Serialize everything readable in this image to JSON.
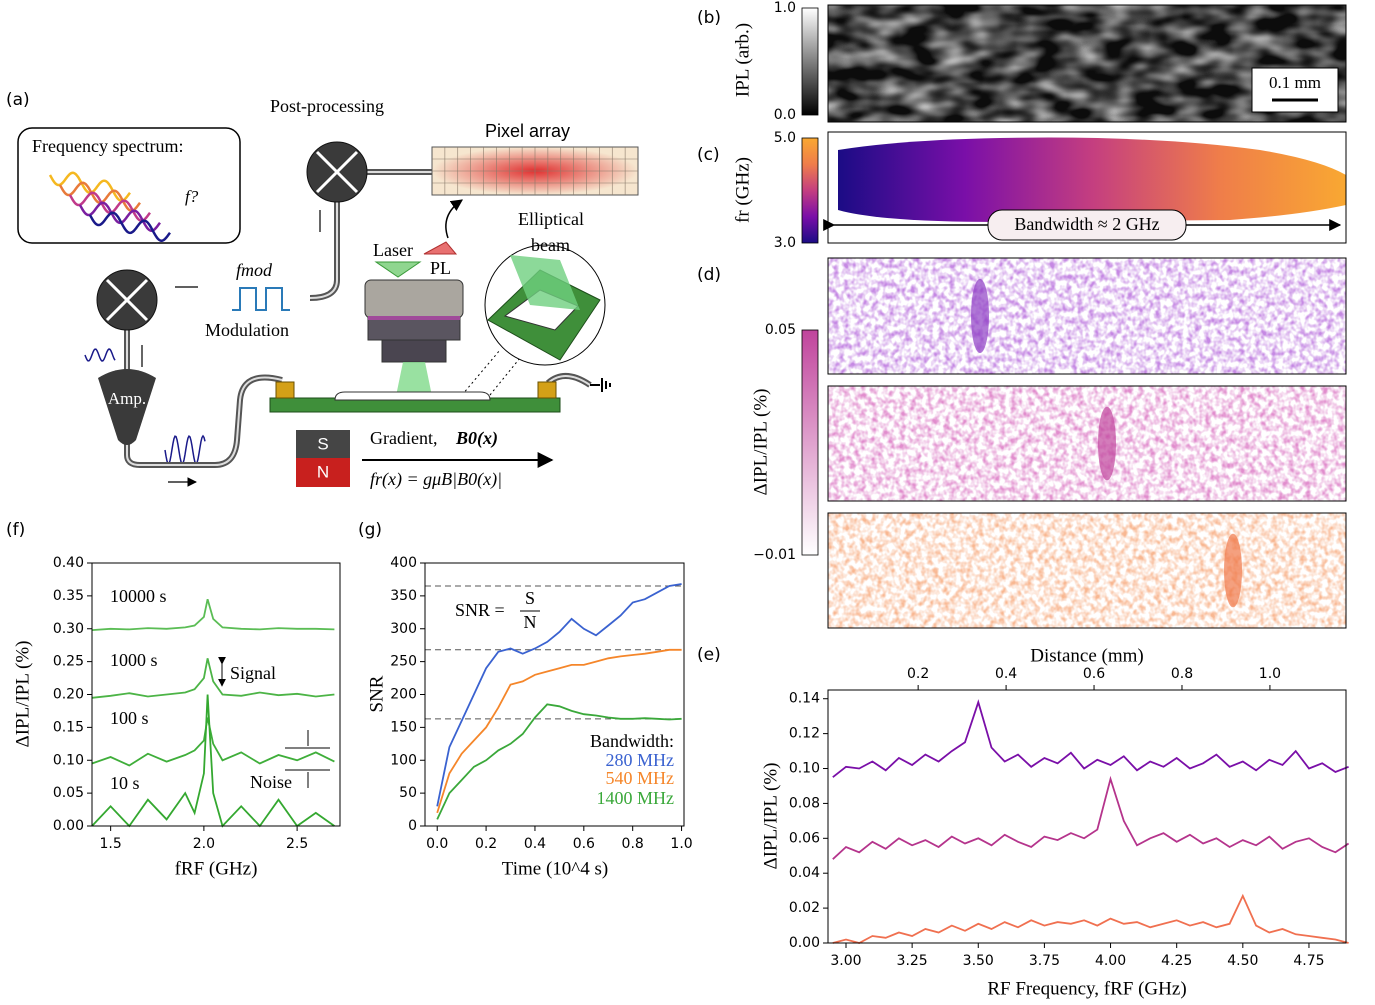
{
  "diagram": {
    "panel": "(a)",
    "spectrum_title": "Frequency spectrum:",
    "unknown_freq": "f?",
    "post_processing": "Post-processing",
    "pixel_array": "Pixel array",
    "laser": "Laser",
    "pl": "PL",
    "elliptical": "Elliptical",
    "beam": "beam",
    "fmod": "fmod",
    "modulation": "Modulation",
    "amp": "Amp.",
    "south": "S",
    "north": "N",
    "gradient": "Gradient,",
    "field": "B0(x)",
    "resonance": "fr(x) = gμB|B0(x)|"
  },
  "chart_data": [
    {
      "type": "image",
      "panel": "(b)",
      "colorbar_label": "IPL (arb.)",
      "clim": [
        0,
        1
      ],
      "cticks": [
        {
          "value": 0,
          "label": "0.0"
        },
        {
          "value": 1,
          "label": "1.0"
        }
      ],
      "cmap": [
        "#000000",
        "#ffffff"
      ],
      "colors": [
        "#d0d0d0"
      ],
      "annotations": [
        "0.1 mm"
      ]
    },
    {
      "type": "image",
      "panel": "(c)",
      "colorbar_label": "fr (GHz)",
      "clim": [
        3,
        5
      ],
      "cticks": [
        {
          "value": 3,
          "label": "3.0"
        },
        {
          "value": 5,
          "label": "5.0"
        }
      ],
      "cmap": [
        "#1b0c85",
        "#7a0fa8",
        "#c43e80",
        "#ef7d4a",
        "#f9a832"
      ],
      "colors": [
        "#ffffff"
      ],
      "annotations": [
        "Bandwidth ≈ 2 GHz"
      ]
    },
    {
      "type": "image",
      "panel": "(d)",
      "colorbar_label": "ΔIPL/IPL (%)",
      "clim": [
        -0.01,
        0.05
      ],
      "cticks": [
        {
          "value": -0.01,
          "label": "−0.01"
        },
        0.05
      ],
      "cmap": [
        "#ffffff",
        "#c0449c"
      ],
      "colors": [
        "#8e3fc4",
        "#c0449c",
        "#f07848"
      ]
    },
    {
      "type": "line",
      "panel": "(e)",
      "xlabel": "RF Frequency, fRF (GHz)",
      "ylabel": "ΔIPL/IPL (%)",
      "x2label": "Distance (mm)",
      "xlim": [
        2.932,
        4.89
      ],
      "ylim": [
        0,
        0.145
      ],
      "x2lim": [
        -0.005,
        1.173
      ],
      "xticks": [
        {
          "value": 3,
          "label": "3.00"
        },
        {
          "value": 3.25,
          "label": "3.25"
        },
        {
          "value": 3.5,
          "label": "3.50"
        },
        {
          "value": 3.75,
          "label": "3.75"
        },
        {
          "value": 4,
          "label": "4.00"
        },
        {
          "value": 4.25,
          "label": "4.25"
        },
        {
          "value": 4.5,
          "label": "4.50"
        },
        {
          "value": 4.75,
          "label": "4.75"
        }
      ],
      "yticks": [
        {
          "value": 0,
          "label": "0.00"
        },
        {
          "value": 0.02,
          "label": "0.02"
        },
        {
          "value": 0.04,
          "label": "0.04"
        },
        {
          "value": 0.06,
          "label": "0.06"
        },
        {
          "value": 0.08,
          "label": "0.08"
        },
        {
          "value": 0.1,
          "label": "0.10"
        },
        {
          "value": 0.12,
          "label": "0.12"
        },
        {
          "value": 0.14,
          "label": "0.14"
        }
      ],
      "x2ticks": [
        0.2,
        0.4,
        0.6,
        0.8,
        {
          "value": 1,
          "label": "1.0"
        }
      ],
      "x": [
        2.95,
        3.0,
        3.05,
        3.1,
        3.15,
        3.2,
        3.25,
        3.3,
        3.35,
        3.4,
        3.45,
        3.5,
        3.55,
        3.6,
        3.65,
        3.7,
        3.75,
        3.8,
        3.85,
        3.9,
        3.95,
        4.0,
        4.05,
        4.1,
        4.15,
        4.2,
        4.25,
        4.3,
        4.35,
        4.4,
        4.45,
        4.5,
        4.55,
        4.6,
        4.65,
        4.7,
        4.75,
        4.8,
        4.85,
        4.9
      ],
      "series": [
        {
          "color": "#7a0fa8",
          "values": [
            0.095,
            0.101,
            0.1,
            0.104,
            0.099,
            0.106,
            0.102,
            0.108,
            0.104,
            0.11,
            0.115,
            0.138,
            0.112,
            0.104,
            0.108,
            0.101,
            0.106,
            0.103,
            0.109,
            0.1,
            0.105,
            0.102,
            0.107,
            0.099,
            0.104,
            0.101,
            0.106,
            0.1,
            0.103,
            0.108,
            0.101,
            0.104,
            0.099,
            0.105,
            0.102,
            0.11,
            0.1,
            0.103,
            0.098,
            0.101
          ]
        },
        {
          "color": "#b5348c",
          "values": [
            0.048,
            0.055,
            0.052,
            0.058,
            0.054,
            0.06,
            0.056,
            0.059,
            0.055,
            0.061,
            0.057,
            0.06,
            0.056,
            0.062,
            0.058,
            0.055,
            0.061,
            0.059,
            0.063,
            0.06,
            0.065,
            0.094,
            0.07,
            0.056,
            0.06,
            0.063,
            0.058,
            0.062,
            0.057,
            0.06,
            0.055,
            0.059,
            0.056,
            0.061,
            0.054,
            0.058,
            0.06,
            0.055,
            0.052,
            0.057
          ]
        },
        {
          "color": "#f07050",
          "values": [
            0,
            0.002,
            0,
            0.004,
            0.003,
            0.006,
            0.004,
            0.008,
            0.006,
            0.01,
            0.007,
            0.011,
            0.008,
            0.012,
            0.009,
            0.013,
            0.01,
            0.012,
            0.011,
            0.013,
            0.01,
            0.014,
            0.011,
            0.012,
            0.009,
            0.011,
            0.013,
            0.01,
            0.012,
            0.009,
            0.011,
            0.027,
            0.01,
            0.006,
            0.008,
            0.005,
            0.004,
            0.003,
            0.002,
            0
          ]
        }
      ]
    },
    {
      "type": "line",
      "panel": "(f)",
      "xlabel": "fRF (GHz)",
      "ylabel": "ΔIPL/IPL (%)",
      "xlim": [
        1.4,
        2.73
      ],
      "ylim": [
        0,
        0.4
      ],
      "xticks": [
        1.5,
        {
          "value": 2,
          "label": "2.0"
        },
        2.5
      ],
      "yticks": [
        {
          "value": 0,
          "label": "0.00"
        },
        {
          "value": 0.05,
          "label": "0.05"
        },
        {
          "value": 0.1,
          "label": "0.10"
        },
        {
          "value": 0.15,
          "label": "0.15"
        },
        {
          "value": 0.2,
          "label": "0.20"
        },
        {
          "value": 0.25,
          "label": "0.25"
        },
        {
          "value": 0.3,
          "label": "0.30"
        },
        {
          "value": 0.35,
          "label": "0.35"
        },
        {
          "value": 0.4,
          "label": "0.40"
        }
      ],
      "x": [
        1.4,
        1.5,
        1.6,
        1.7,
        1.8,
        1.9,
        1.95,
        2.0,
        2.02,
        2.05,
        2.1,
        2.2,
        2.3,
        2.4,
        2.5,
        2.6,
        2.7
      ],
      "series": [
        {
          "name": "10000 s",
          "color": "#5bbd55",
          "values": [
            0.298,
            0.3,
            0.299,
            0.301,
            0.3,
            0.302,
            0.305,
            0.318,
            0.345,
            0.315,
            0.302,
            0.3,
            0.299,
            0.301,
            0.3,
            0.3,
            0.299
          ]
        },
        {
          "name": "1000 s",
          "color": "#4cb446",
          "values": [
            0.195,
            0.198,
            0.202,
            0.197,
            0.2,
            0.203,
            0.208,
            0.225,
            0.255,
            0.22,
            0.2,
            0.198,
            0.203,
            0.199,
            0.201,
            0.197,
            0.2
          ]
        },
        {
          "name": "100 s",
          "color": "#3fae3a",
          "values": [
            0.095,
            0.105,
            0.092,
            0.11,
            0.098,
            0.108,
            0.115,
            0.13,
            0.165,
            0.125,
            0.1,
            0.112,
            0.095,
            0.108,
            0.1,
            0.112,
            0.098
          ]
        },
        {
          "name": "10 s",
          "color": "#34a830",
          "values": [
            0,
            0.03,
            0,
            0.04,
            0.01,
            0.05,
            0.02,
            0.08,
            0.2,
            0.05,
            0,
            0.03,
            0,
            0.04,
            0,
            0.02,
            0
          ]
        }
      ],
      "annotations": [
        "Signal",
        "Noise"
      ]
    },
    {
      "type": "line",
      "panel": "(g)",
      "xlabel": "Time (10^4 s)",
      "ylabel": "SNR",
      "xlim": [
        -0.05,
        1.01
      ],
      "ylim": [
        0,
        400
      ],
      "xticks": [
        {
          "value": 0,
          "label": "0.0"
        },
        0.2,
        0.4,
        0.6,
        0.8,
        {
          "value": 1,
          "label": "1.0"
        }
      ],
      "yticks": [
        0,
        50,
        100,
        150,
        200,
        250,
        300,
        350,
        400
      ],
      "x": [
        0,
        0.05,
        0.1,
        0.15,
        0.2,
        0.25,
        0.3,
        0.35,
        0.4,
        0.45,
        0.5,
        0.55,
        0.6,
        0.65,
        0.7,
        0.75,
        0.8,
        0.85,
        0.9,
        0.95,
        1.0
      ],
      "hlines": [
        365,
        268,
        163
      ],
      "legend_title": "Bandwidth:",
      "formula": {
        "lhs": "SNR =",
        "num": "S",
        "den": "N"
      },
      "series": [
        {
          "name": "280 MHz",
          "color": "#3a62d0",
          "values": [
            30,
            120,
            160,
            200,
            240,
            265,
            270,
            262,
            270,
            280,
            295,
            315,
            300,
            290,
            305,
            320,
            340,
            345,
            355,
            365,
            368
          ]
        },
        {
          "name": "540 MHz",
          "color": "#f5862a",
          "values": [
            20,
            80,
            110,
            130,
            150,
            180,
            215,
            220,
            230,
            235,
            240,
            245,
            245,
            250,
            255,
            258,
            260,
            262,
            265,
            268,
            268
          ]
        },
        {
          "name": "1400 MHz",
          "color": "#3aa83a",
          "values": [
            10,
            50,
            70,
            90,
            100,
            115,
            125,
            140,
            165,
            185,
            182,
            175,
            170,
            168,
            165,
            163,
            163,
            164,
            163,
            162,
            163
          ]
        }
      ]
    }
  ]
}
